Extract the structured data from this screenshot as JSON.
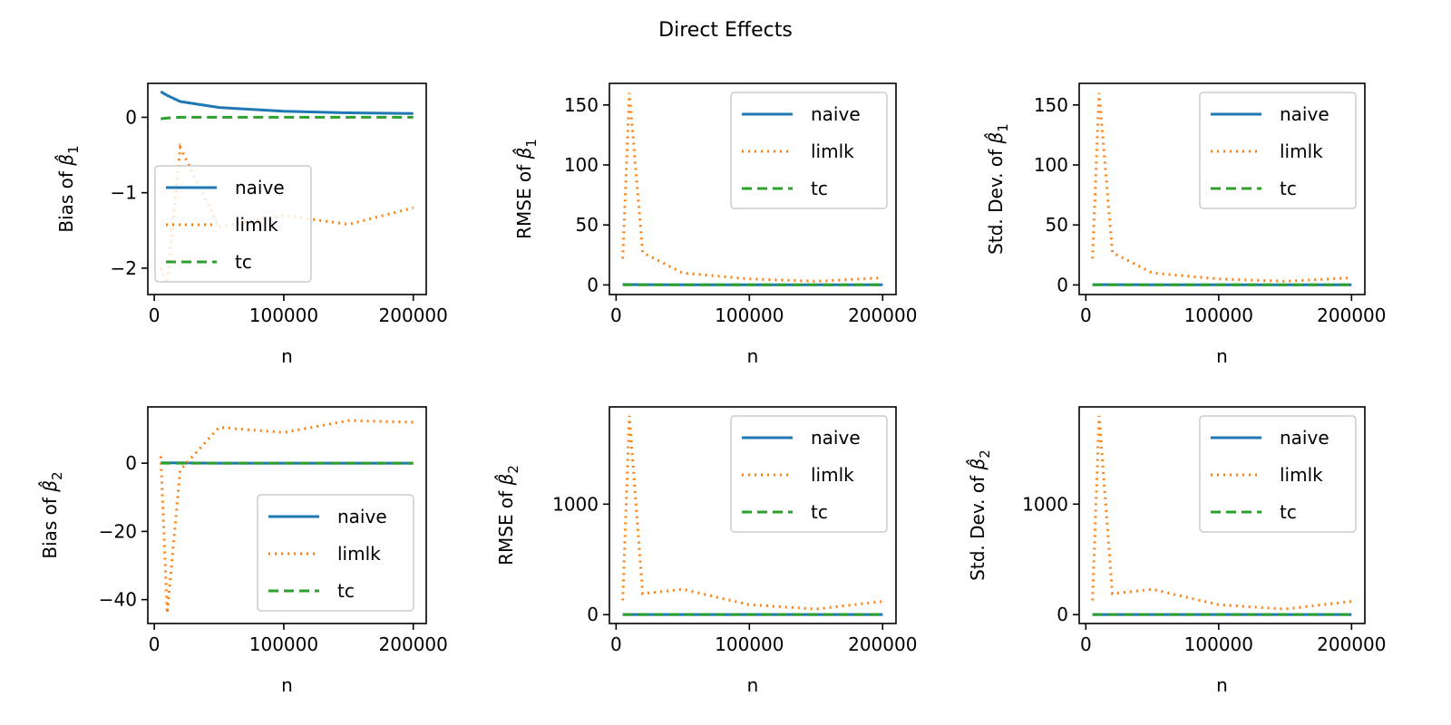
{
  "figure": {
    "title": "Direct Effects"
  },
  "styles": {
    "naive": {
      "color": "#1f77b4",
      "dash": ""
    },
    "limlk": {
      "color": "#ff7f0e",
      "dash": "2,5"
    },
    "tc": {
      "color": "#2ca02c",
      "dash": "11,6"
    }
  },
  "chart_data": [
    {
      "type": "line",
      "ylabel_prefix": "Bias of ",
      "beta_index": "1",
      "xlabel": "n",
      "xlim": [
        -5000,
        210000
      ],
      "ylim": [
        -2.35,
        0.45
      ],
      "xticks": [
        0,
        100000,
        200000
      ],
      "xtick_labels": [
        "0",
        "100000",
        "200000"
      ],
      "yticks": [
        -2,
        -1,
        0
      ],
      "ytick_labels": [
        "−2",
        "−1",
        "0"
      ],
      "legend": "lower-left",
      "x": [
        5000,
        10000,
        20000,
        50000,
        100000,
        150000,
        200000
      ],
      "series": [
        {
          "name": "naive",
          "values": [
            0.34,
            0.29,
            0.21,
            0.13,
            0.08,
            0.06,
            0.05
          ]
        },
        {
          "name": "limlk",
          "values": [
            -2.0,
            -2.2,
            -0.4,
            -1.45,
            -1.3,
            -1.42,
            -1.2
          ]
        },
        {
          "name": "tc",
          "values": [
            -0.02,
            -0.01,
            0.0,
            0.0,
            0.0,
            0.0,
            0.0
          ]
        }
      ]
    },
    {
      "type": "line",
      "ylabel_prefix": "RMSE of ",
      "beta_index": "1",
      "xlabel": "n",
      "xlim": [
        -5000,
        210000
      ],
      "ylim": [
        -8,
        168
      ],
      "xticks": [
        0,
        100000,
        200000
      ],
      "xtick_labels": [
        "0",
        "100000",
        "200000"
      ],
      "yticks": [
        0,
        50,
        100,
        150
      ],
      "ytick_labels": [
        "0",
        "50",
        "100",
        "150"
      ],
      "legend": "upper-right",
      "x": [
        5000,
        10000,
        20000,
        50000,
        100000,
        150000,
        200000
      ],
      "series": [
        {
          "name": "naive",
          "values": [
            0.4,
            0.3,
            0.2,
            0.15,
            0.1,
            0.1,
            0.1
          ]
        },
        {
          "name": "limlk",
          "values": [
            22,
            160,
            27,
            10,
            5,
            3,
            6
          ]
        },
        {
          "name": "tc",
          "values": [
            0.1,
            0.1,
            0.1,
            0.1,
            0.1,
            0.1,
            0.1
          ]
        }
      ]
    },
    {
      "type": "line",
      "ylabel_prefix": "Std. Dev. of ",
      "beta_index": "1",
      "xlabel": "n",
      "xlim": [
        -5000,
        210000
      ],
      "ylim": [
        -8,
        168
      ],
      "xticks": [
        0,
        100000,
        200000
      ],
      "xtick_labels": [
        "0",
        "100000",
        "200000"
      ],
      "yticks": [
        0,
        50,
        100,
        150
      ],
      "ytick_labels": [
        "0",
        "50",
        "100",
        "150"
      ],
      "legend": "upper-right",
      "x": [
        5000,
        10000,
        20000,
        50000,
        100000,
        150000,
        200000
      ],
      "series": [
        {
          "name": "naive",
          "values": [
            0.3,
            0.25,
            0.2,
            0.1,
            0.1,
            0.1,
            0.1
          ]
        },
        {
          "name": "limlk",
          "values": [
            22,
            160,
            27,
            10,
            5,
            3,
            6
          ]
        },
        {
          "name": "tc",
          "values": [
            0.1,
            0.1,
            0.1,
            0.1,
            0.1,
            0.1,
            0.1
          ]
        }
      ]
    },
    {
      "type": "line",
      "ylabel_prefix": "Bias of ",
      "beta_index": "2",
      "xlabel": "n",
      "xlim": [
        -5000,
        210000
      ],
      "ylim": [
        -47,
        16.5
      ],
      "xticks": [
        0,
        100000,
        200000
      ],
      "xtick_labels": [
        "0",
        "100000",
        "200000"
      ],
      "yticks": [
        -40,
        -20,
        0
      ],
      "ytick_labels": [
        "−40",
        "−20",
        "0"
      ],
      "legend": "lower-right",
      "x": [
        5000,
        10000,
        20000,
        50000,
        100000,
        150000,
        200000
      ],
      "series": [
        {
          "name": "naive",
          "values": [
            0.1,
            0.1,
            0.1,
            0.0,
            0.0,
            0.0,
            0.0
          ]
        },
        {
          "name": "limlk",
          "values": [
            2,
            -44,
            -2,
            10.5,
            9,
            12.5,
            12
          ]
        },
        {
          "name": "tc",
          "values": [
            0.0,
            0.0,
            0.0,
            0.0,
            0.0,
            0.0,
            0.0
          ]
        }
      ]
    },
    {
      "type": "line",
      "ylabel_prefix": "RMSE of ",
      "beta_index": "2",
      "xlabel": "n",
      "xlim": [
        -5000,
        210000
      ],
      "ylim": [
        -80,
        1880
      ],
      "xticks": [
        0,
        100000,
        200000
      ],
      "xtick_labels": [
        "0",
        "100000",
        "200000"
      ],
      "yticks": [
        0,
        1000
      ],
      "ytick_labels": [
        "0",
        "1000"
      ],
      "legend": "upper-right",
      "x": [
        5000,
        10000,
        20000,
        50000,
        100000,
        150000,
        200000
      ],
      "series": [
        {
          "name": "naive",
          "values": [
            1,
            1,
            1,
            1,
            1,
            1,
            1
          ]
        },
        {
          "name": "limlk",
          "values": [
            130,
            1800,
            190,
            230,
            90,
            50,
            120
          ]
        },
        {
          "name": "tc",
          "values": [
            1,
            1,
            1,
            1,
            1,
            1,
            1
          ]
        }
      ]
    },
    {
      "type": "line",
      "ylabel_prefix": "Std. Dev. of ",
      "beta_index": "2",
      "xlabel": "n",
      "xlim": [
        -5000,
        210000
      ],
      "ylim": [
        -80,
        1880
      ],
      "xticks": [
        0,
        100000,
        200000
      ],
      "xtick_labels": [
        "0",
        "100000",
        "200000"
      ],
      "yticks": [
        0,
        1000
      ],
      "ytick_labels": [
        "0",
        "1000"
      ],
      "legend": "upper-right",
      "x": [
        5000,
        10000,
        20000,
        50000,
        100000,
        150000,
        200000
      ],
      "series": [
        {
          "name": "naive",
          "values": [
            1,
            1,
            1,
            1,
            1,
            1,
            1
          ]
        },
        {
          "name": "limlk",
          "values": [
            130,
            1800,
            190,
            230,
            90,
            50,
            120
          ]
        },
        {
          "name": "tc",
          "values": [
            1,
            1,
            1,
            1,
            1,
            1,
            1
          ]
        }
      ]
    }
  ]
}
